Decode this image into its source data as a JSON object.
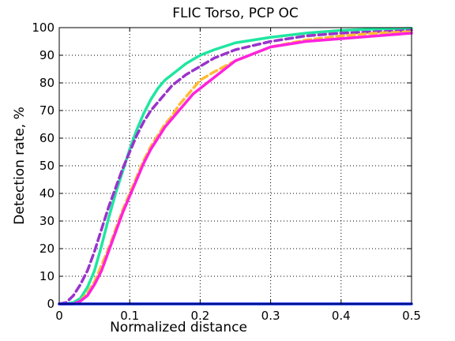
{
  "chart_data": {
    "type": "line",
    "title": "FLIC Torso, PCP OC",
    "xlabel": "Normalized distance",
    "ylabel": "Detection rate, %",
    "xlim": [
      0,
      0.5
    ],
    "ylim": [
      0,
      100
    ],
    "xticks": [
      0,
      0.1,
      0.2,
      0.3,
      0.4,
      0.5
    ],
    "xtick_labels": [
      "0",
      "0.1",
      "0.2",
      "0.3",
      "0.4",
      "0.5"
    ],
    "yticks": [
      0,
      10,
      20,
      30,
      40,
      50,
      60,
      70,
      80,
      90,
      100
    ],
    "ytick_labels": [
      "0",
      "10",
      "20",
      "30",
      "40",
      "50",
      "60",
      "70",
      "80",
      "90",
      "100"
    ],
    "grid": true,
    "legend": false,
    "series": [
      {
        "color": "#1fe6a0",
        "style": "solid",
        "x": [
          0,
          0.01,
          0.02,
          0.03,
          0.04,
          0.05,
          0.06,
          0.07,
          0.08,
          0.09,
          0.1,
          0.11,
          0.12,
          0.13,
          0.14,
          0.15,
          0.16,
          0.18,
          0.2,
          0.22,
          0.25,
          0.3,
          0.35,
          0.4,
          0.45,
          0.5
        ],
        "y": [
          0,
          0,
          0.5,
          2,
          6,
          12,
          21,
          31,
          40,
          48,
          56,
          63,
          69,
          74,
          78,
          81,
          83,
          87,
          90,
          92,
          94.5,
          96.5,
          98,
          99,
          99.5,
          99.7
        ]
      },
      {
        "color": "#9933cc",
        "style": "dashed",
        "x": [
          0,
          0.01,
          0.02,
          0.03,
          0.04,
          0.05,
          0.06,
          0.07,
          0.08,
          0.09,
          0.1,
          0.11,
          0.12,
          0.13,
          0.14,
          0.15,
          0.16,
          0.18,
          0.2,
          0.22,
          0.25,
          0.3,
          0.35,
          0.4,
          0.45,
          0.5
        ],
        "y": [
          0,
          0.5,
          3,
          7,
          12,
          19,
          27,
          35,
          42,
          49,
          55,
          61,
          66,
          70,
          73,
          76,
          79,
          83,
          86,
          89,
          92,
          95,
          97,
          98,
          98.5,
          99
        ]
      },
      {
        "color": "#ffbb33",
        "style": "dashed",
        "x": [
          0,
          0.02,
          0.03,
          0.04,
          0.05,
          0.06,
          0.07,
          0.08,
          0.09,
          0.1,
          0.11,
          0.12,
          0.13,
          0.14,
          0.15,
          0.16,
          0.17,
          0.18,
          0.19,
          0.2,
          0.22,
          0.25,
          0.3,
          0.35,
          0.4,
          0.45,
          0.5
        ],
        "y": [
          0,
          0,
          1,
          4,
          8,
          14,
          20,
          27,
          34,
          40,
          46,
          52,
          57,
          61,
          65,
          68,
          72,
          75,
          78,
          81,
          84,
          88,
          93,
          95.5,
          97,
          98,
          98.5
        ]
      },
      {
        "color": "#ff22dd",
        "style": "solid",
        "x": [
          0,
          0.02,
          0.03,
          0.04,
          0.05,
          0.06,
          0.07,
          0.08,
          0.09,
          0.1,
          0.11,
          0.12,
          0.13,
          0.14,
          0.15,
          0.16,
          0.17,
          0.18,
          0.19,
          0.2,
          0.22,
          0.25,
          0.3,
          0.35,
          0.4,
          0.45,
          0.5
        ],
        "y": [
          0,
          0,
          1,
          3,
          7,
          12,
          19,
          26,
          33,
          39,
          45,
          51,
          56,
          60,
          64,
          67,
          70,
          73,
          76,
          78,
          82,
          88,
          93,
          95,
          96,
          97,
          98
        ]
      },
      {
        "color": "#0022ff",
        "style": "solid",
        "x": [
          0,
          0.5
        ],
        "y": [
          0,
          0
        ]
      }
    ]
  }
}
